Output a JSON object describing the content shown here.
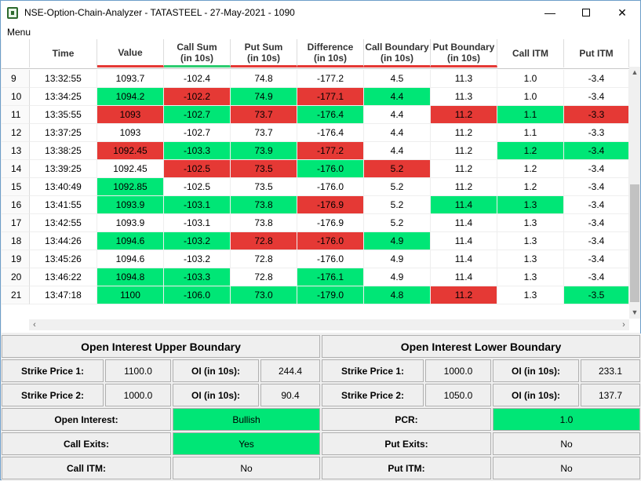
{
  "window": {
    "title": "NSE-Option-Chain-Analyzer - TATASTEEL - 27-May-2021 - 1090",
    "minimize_glyph": "—",
    "close_glyph": "✕"
  },
  "menu": {
    "label": "Menu"
  },
  "table": {
    "headers": [
      "Time",
      "Value",
      "Call Sum\n(in 10s)",
      "Put Sum\n(in 10s)",
      "Difference\n(in 10s)",
      "Call Boundary\n(in 10s)",
      "Put Boundary\n(in 10s)",
      "Call ITM",
      "Put ITM"
    ],
    "rows": [
      {
        "idx": "9",
        "cells": [
          "13:32:55",
          "1093.7",
          "-102.4",
          "74.8",
          "-177.2",
          "4.5",
          "11.3",
          "1.0",
          "-3.4"
        ],
        "colors": [
          "",
          "",
          "",
          "",
          "",
          "",
          "",
          "",
          ""
        ]
      },
      {
        "idx": "10",
        "cells": [
          "13:34:25",
          "1094.2",
          "-102.2",
          "74.9",
          "-177.1",
          "4.4",
          "11.3",
          "1.0",
          "-3.4"
        ],
        "colors": [
          "",
          "g",
          "r",
          "g",
          "r",
          "g",
          "",
          "",
          ""
        ]
      },
      {
        "idx": "11",
        "cells": [
          "13:35:55",
          "1093",
          "-102.7",
          "73.7",
          "-176.4",
          "4.4",
          "11.2",
          "1.1",
          "-3.3"
        ],
        "colors": [
          "",
          "r",
          "g",
          "r",
          "g",
          "",
          "r",
          "g",
          "r"
        ]
      },
      {
        "idx": "12",
        "cells": [
          "13:37:25",
          "1093",
          "-102.7",
          "73.7",
          "-176.4",
          "4.4",
          "11.2",
          "1.1",
          "-3.3"
        ],
        "colors": [
          "",
          "",
          "",
          "",
          "",
          "",
          "",
          "",
          ""
        ]
      },
      {
        "idx": "13",
        "cells": [
          "13:38:25",
          "1092.45",
          "-103.3",
          "73.9",
          "-177.2",
          "4.4",
          "11.2",
          "1.2",
          "-3.4"
        ],
        "colors": [
          "",
          "r",
          "g",
          "g",
          "r",
          "",
          "",
          "g",
          "g"
        ]
      },
      {
        "idx": "14",
        "cells": [
          "13:39:25",
          "1092.45",
          "-102.5",
          "73.5",
          "-176.0",
          "5.2",
          "11.2",
          "1.2",
          "-3.4"
        ],
        "colors": [
          "",
          "",
          "r",
          "r",
          "g",
          "r",
          "",
          "",
          ""
        ]
      },
      {
        "idx": "15",
        "cells": [
          "13:40:49",
          "1092.85",
          "-102.5",
          "73.5",
          "-176.0",
          "5.2",
          "11.2",
          "1.2",
          "-3.4"
        ],
        "colors": [
          "",
          "g",
          "",
          "",
          "",
          "",
          "",
          "",
          ""
        ]
      },
      {
        "idx": "16",
        "cells": [
          "13:41:55",
          "1093.9",
          "-103.1",
          "73.8",
          "-176.9",
          "5.2",
          "11.4",
          "1.3",
          "-3.4"
        ],
        "colors": [
          "",
          "g",
          "g",
          "g",
          "r",
          "",
          "g",
          "g",
          ""
        ]
      },
      {
        "idx": "17",
        "cells": [
          "13:42:55",
          "1093.9",
          "-103.1",
          "73.8",
          "-176.9",
          "5.2",
          "11.4",
          "1.3",
          "-3.4"
        ],
        "colors": [
          "",
          "",
          "",
          "",
          "",
          "",
          "",
          "",
          ""
        ]
      },
      {
        "idx": "18",
        "cells": [
          "13:44:26",
          "1094.6",
          "-103.2",
          "72.8",
          "-176.0",
          "4.9",
          "11.4",
          "1.3",
          "-3.4"
        ],
        "colors": [
          "",
          "g",
          "g",
          "r",
          "r",
          "g",
          "",
          "",
          ""
        ]
      },
      {
        "idx": "19",
        "cells": [
          "13:45:26",
          "1094.6",
          "-103.2",
          "72.8",
          "-176.0",
          "4.9",
          "11.4",
          "1.3",
          "-3.4"
        ],
        "colors": [
          "",
          "",
          "",
          "",
          "",
          "",
          "",
          "",
          ""
        ]
      },
      {
        "idx": "20",
        "cells": [
          "13:46:22",
          "1094.8",
          "-103.3",
          "72.8",
          "-176.1",
          "4.9",
          "11.4",
          "1.3",
          "-3.4"
        ],
        "colors": [
          "",
          "g",
          "g",
          "",
          "g",
          "",
          "",
          "",
          ""
        ]
      },
      {
        "idx": "21",
        "cells": [
          "13:47:18",
          "1100",
          "-106.0",
          "73.0",
          "-179.0",
          "4.8",
          "11.2",
          "1.3",
          "-3.5"
        ],
        "colors": [
          "",
          "g",
          "g",
          "g",
          "g",
          "g",
          "r",
          "",
          "g"
        ]
      }
    ]
  },
  "panel": {
    "upper_title": "Open Interest Upper Boundary",
    "lower_title": "Open Interest Lower Boundary",
    "strike1_label": "Strike Price 1:",
    "strike2_label": "Strike Price 2:",
    "oi_label": "OI (in 10s):",
    "upper_strike1": "1100.0",
    "upper_oi1": "244.4",
    "upper_strike2": "1000.0",
    "upper_oi2": "90.4",
    "lower_strike1": "1000.0",
    "lower_oi1": "233.1",
    "lower_strike2": "1050.0",
    "lower_oi2": "137.7",
    "open_interest_label": "Open Interest:",
    "open_interest_value": "Bullish",
    "pcr_label": "PCR:",
    "pcr_value": "1.0",
    "call_exits_label": "Call Exits:",
    "call_exits_value": "Yes",
    "put_exits_label": "Put Exits:",
    "put_exits_value": "No",
    "call_itm_label": "Call ITM:",
    "call_itm_value": "No",
    "put_itm_label": "Put ITM:",
    "put_itm_value": "No"
  },
  "colors": {
    "green": "#00e676",
    "red": "#e53935"
  }
}
